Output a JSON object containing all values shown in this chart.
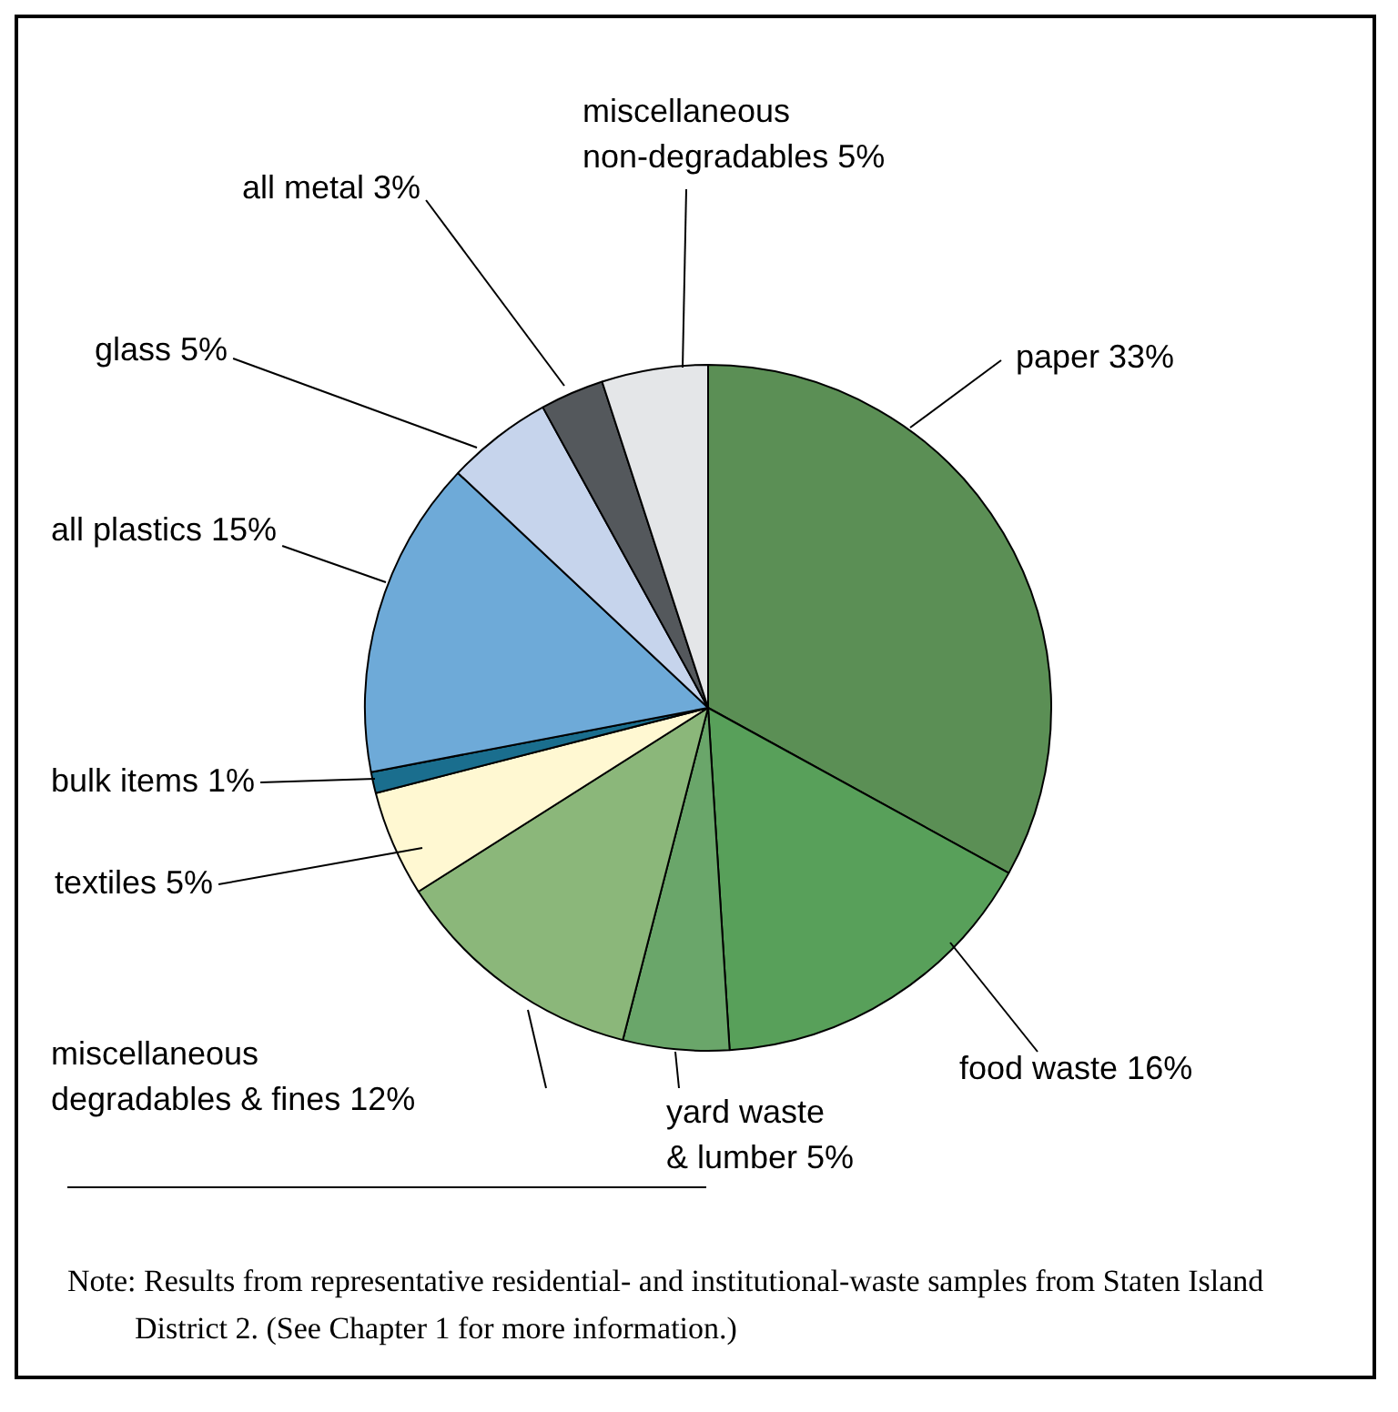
{
  "chart_data": {
    "type": "pie",
    "categories": [
      "paper",
      "food waste",
      "yard waste & lumber",
      "miscellaneous degradables & fines",
      "textiles",
      "bulk items",
      "all plastics",
      "glass",
      "all metal",
      "miscellaneous non-degradables"
    ],
    "values": [
      33,
      16,
      5,
      12,
      5,
      1,
      15,
      5,
      3,
      5
    ],
    "value_labels": [
      "33%",
      "16%",
      "5%",
      "12%",
      "5%",
      "1%",
      "15%",
      "5%",
      "3%",
      "5%"
    ],
    "colors": [
      "#5b8f55",
      "#58a05a",
      "#6aa66a",
      "#8bb77a",
      "#fff8d2",
      "#1a6e8e",
      "#6eaad8",
      "#c6d4ec",
      "#54585c",
      "#e4e6e8"
    ],
    "legend": false,
    "annotations": [
      "Note: Results from representative residential- and institutional-waste samples from Staten Island District 2. (See Chapter 1 for more information.)"
    ]
  }
}
